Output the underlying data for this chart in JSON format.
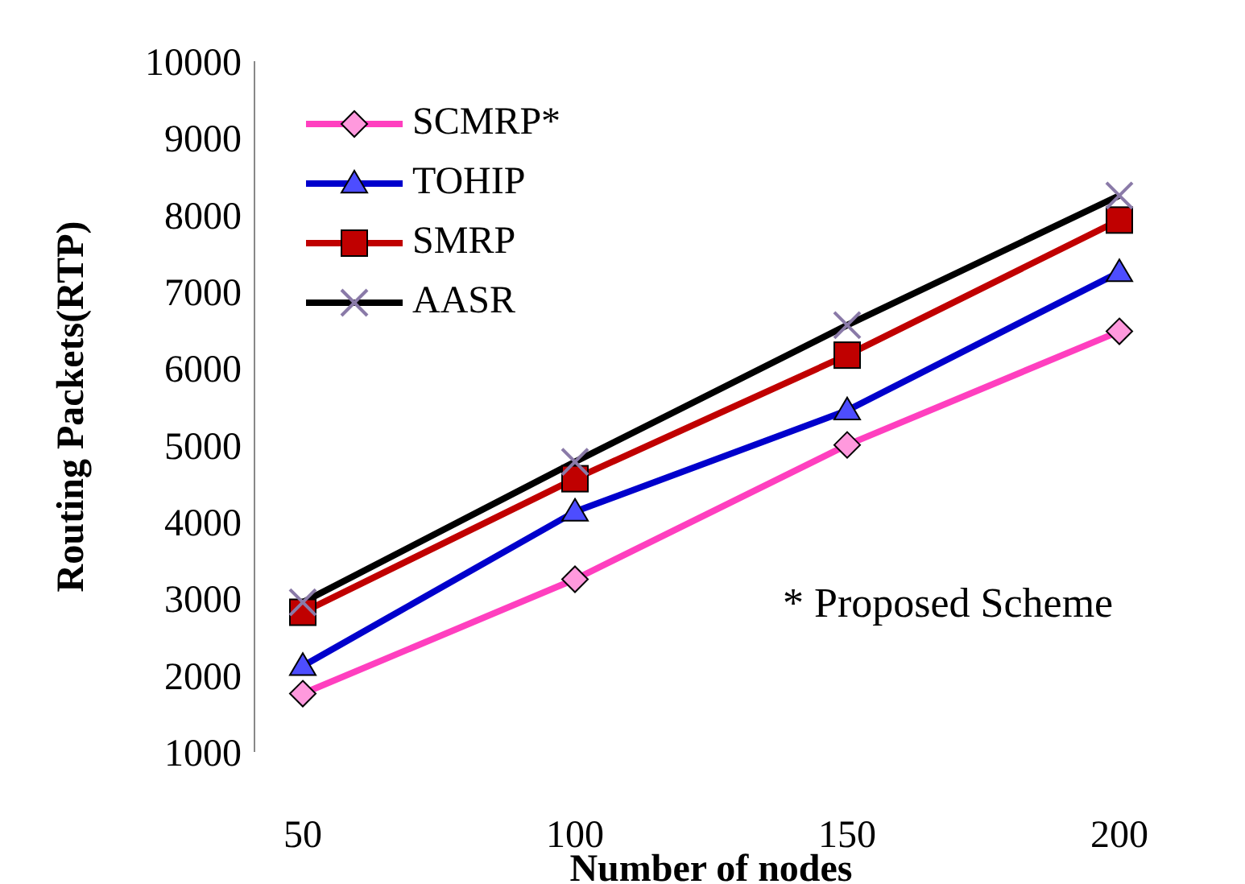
{
  "chart_data": {
    "type": "line",
    "xlabel": "Number of nodes",
    "ylabel": "Routing Packets(RTP)",
    "categories": [
      "50",
      "100",
      "150",
      "200"
    ],
    "series": [
      {
        "name": "SCMRP*",
        "color": "#ff3fbf",
        "marker": "diamond",
        "values": [
          1760,
          3250,
          5000,
          6480
        ]
      },
      {
        "name": "TOHIP",
        "color": "#0000cc",
        "marker": "triangle",
        "values": [
          2120,
          4130,
          5450,
          7250
        ]
      },
      {
        "name": "SMRP",
        "color": "#c00000",
        "marker": "square",
        "values": [
          2820,
          4560,
          6170,
          7930
        ]
      },
      {
        "name": "AASR",
        "color": "#000000",
        "marker": "cross",
        "values": [
          2950,
          4780,
          6560,
          8250
        ]
      }
    ],
    "ylim": [
      1000,
      10000
    ],
    "yticks": [
      1000,
      2000,
      3000,
      4000,
      5000,
      6000,
      7000,
      8000,
      9000,
      10000
    ],
    "grid": false,
    "legend": "top left",
    "annotations": [
      "* Proposed Scheme"
    ]
  }
}
